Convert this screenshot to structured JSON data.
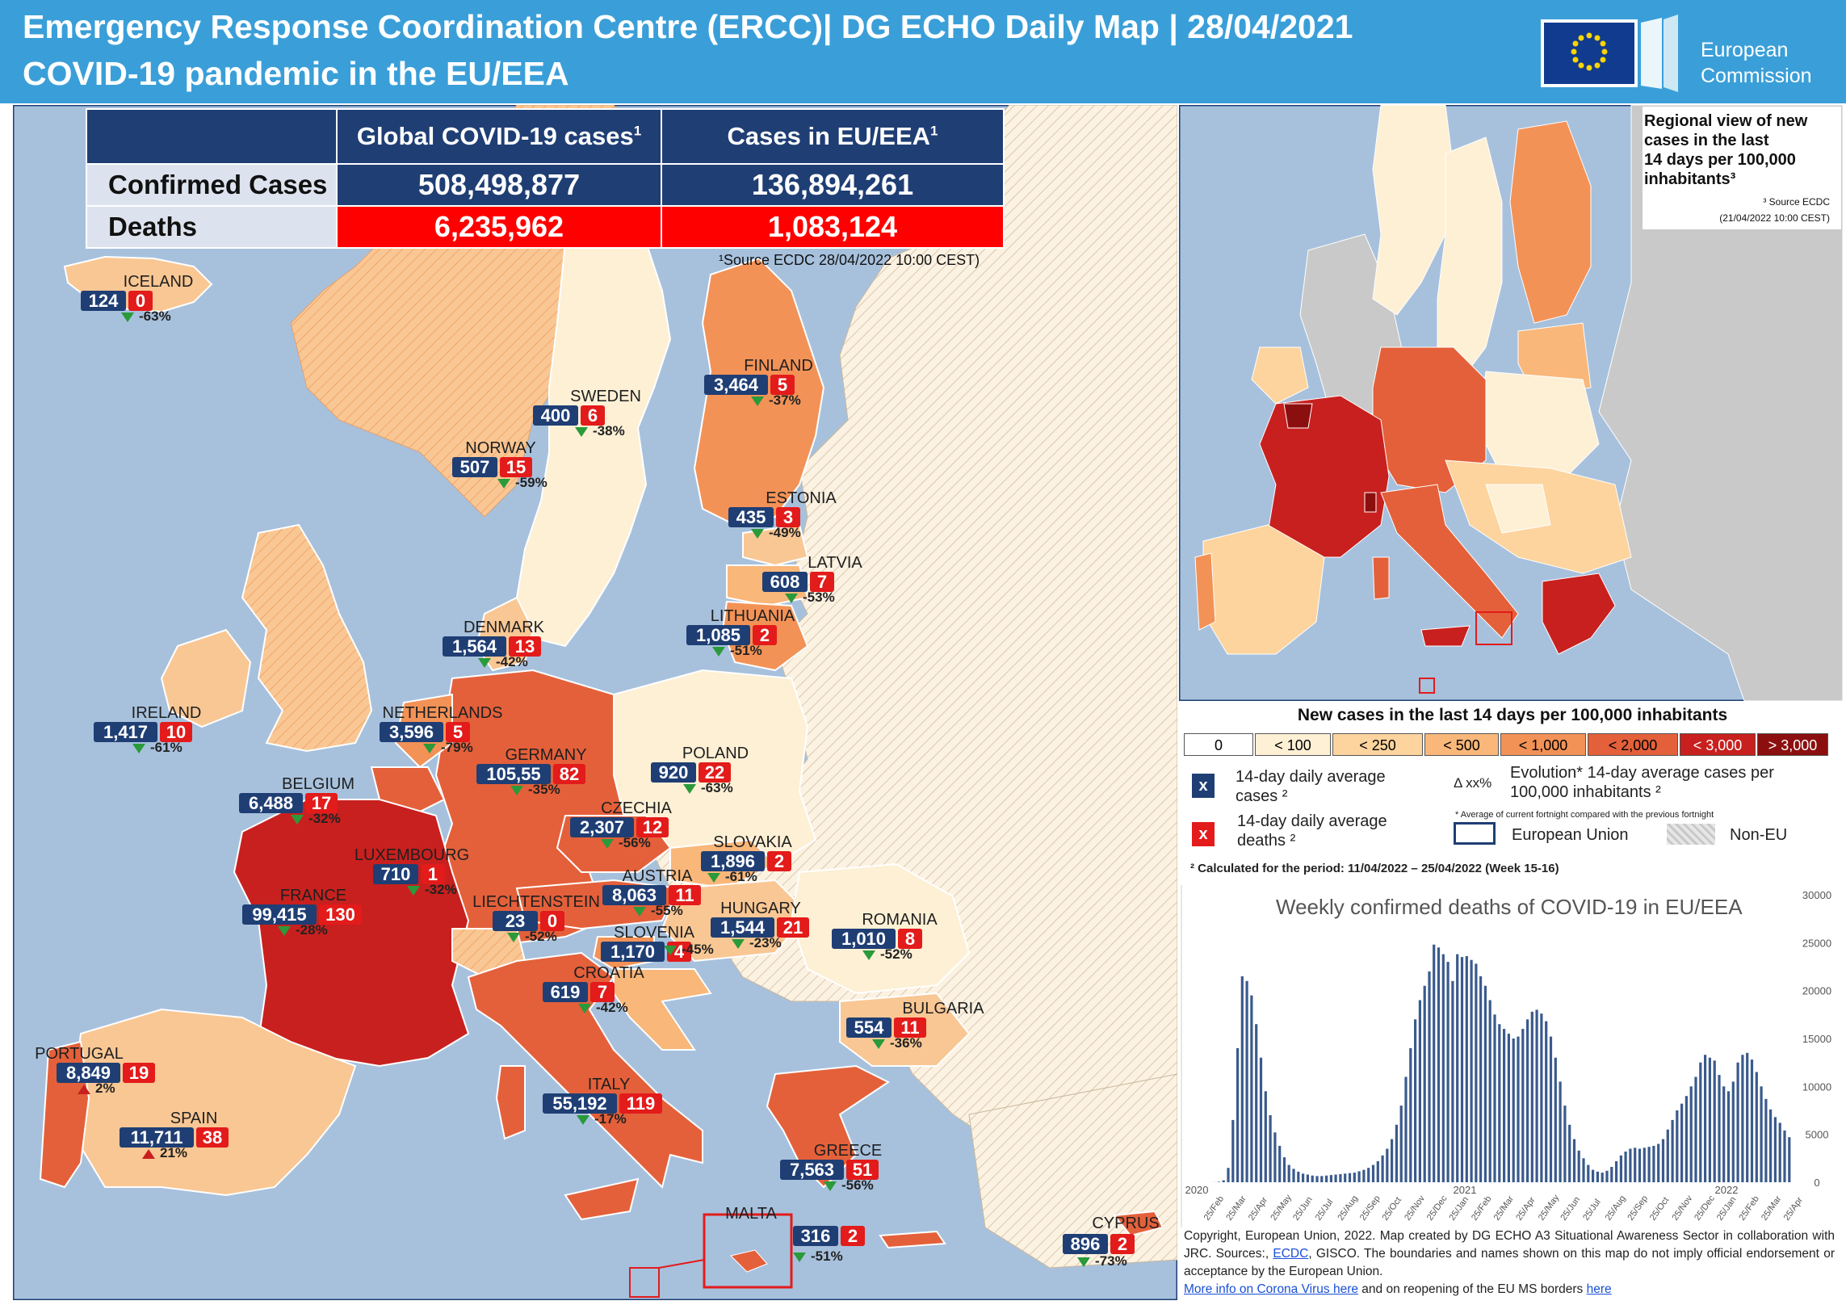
{
  "header": {
    "title_line1": "Emergency Response Coordination Centre (ERCC)| DG ECHO Daily Map | 28/04/2021",
    "title_line2": "COVID-19 pandemic in the EU/EEA",
    "logo_text_1": "European",
    "logo_text_2": "Commission"
  },
  "colors": {
    "header_bg": "#3a9fd8",
    "navy": "#1f3e74",
    "red": "#e31b1b",
    "sea": "#a7c1dd"
  },
  "summary_table": {
    "col_global": "Global COVID-19 cases",
    "col_eu": "Cases in EU/EEA",
    "footnote_mark": "1",
    "row_confirmed": "Confirmed Cases",
    "row_deaths": "Deaths",
    "global_confirmed": "508,498,877",
    "eu_confirmed": "136,894,261",
    "global_deaths": "6,235,962",
    "eu_deaths": "1,083,124",
    "source": "¹Source ECDC  28/04/2022 10:00 CEST)"
  },
  "countries": [
    {
      "name": "ICELAND",
      "cases": "124",
      "deaths": "0",
      "trend": "-63%",
      "dir": "down"
    },
    {
      "name": "SWEDEN",
      "cases": "400",
      "deaths": "6",
      "trend": "-38%",
      "dir": "down"
    },
    {
      "name": "FINLAND",
      "cases": "3,464",
      "deaths": "5",
      "trend": "-37%",
      "dir": "down"
    },
    {
      "name": "NORWAY",
      "cases": "507",
      "deaths": "15",
      "trend": "-59%",
      "dir": "down"
    },
    {
      "name": "ESTONIA",
      "cases": "435",
      "deaths": "3",
      "trend": "-49%",
      "dir": "down"
    },
    {
      "name": "LATVIA",
      "cases": "608",
      "deaths": "7",
      "trend": "-53%",
      "dir": "down"
    },
    {
      "name": "LITHUANIA",
      "cases": "1,085",
      "deaths": "2",
      "trend": "-51%",
      "dir": "down"
    },
    {
      "name": "DENMARK",
      "cases": "1,564",
      "deaths": "13",
      "trend": "-42%",
      "dir": "down"
    },
    {
      "name": "IRELAND",
      "cases": "1,417",
      "deaths": "10",
      "trend": "-61%",
      "dir": "down"
    },
    {
      "name": "NETHERLANDS",
      "cases": "3,596",
      "deaths": "5",
      "trend": "-79%",
      "dir": "down"
    },
    {
      "name": "GERMANY",
      "cases": "105,55",
      "deaths": "82",
      "trend": "-35%",
      "dir": "down"
    },
    {
      "name": "POLAND",
      "cases": "920",
      "deaths": "22",
      "trend": "-63%",
      "dir": "down"
    },
    {
      "name": "BELGIUM",
      "cases": "6,488",
      "deaths": "17",
      "trend": "-32%",
      "dir": "down"
    },
    {
      "name": "CZECHIA",
      "cases": "2,307",
      "deaths": "12",
      "trend": "-56%",
      "dir": "down"
    },
    {
      "name": "SLOVAKIA",
      "cases": "1,896",
      "deaths": "2",
      "trend": "-61%",
      "dir": "down"
    },
    {
      "name": "LUXEMBOURG",
      "cases": "710",
      "deaths": "1",
      "trend": "-32%",
      "dir": "down"
    },
    {
      "name": "AUSTRIA",
      "cases": "8,063",
      "deaths": "11",
      "trend": "-55%",
      "dir": "down"
    },
    {
      "name": "FRANCE",
      "cases": "99,415",
      "deaths": "130",
      "trend": "-28%",
      "dir": "down"
    },
    {
      "name": "LIECHTENSTEIN",
      "cases": "23",
      "deaths": "0",
      "trend": "-52%",
      "dir": "down"
    },
    {
      "name": "HUNGARY",
      "cases": "1,544",
      "deaths": "21",
      "trend": "-23%",
      "dir": "down"
    },
    {
      "name": "ROMANIA",
      "cases": "1,010",
      "deaths": "8",
      "trend": "-52%",
      "dir": "down"
    },
    {
      "name": "SLOVENIA",
      "cases": "1,170",
      "deaths": "4",
      "trend": "-45%",
      "dir": "down"
    },
    {
      "name": "CROATIA",
      "cases": "619",
      "deaths": "7",
      "trend": "-42%",
      "dir": "down"
    },
    {
      "name": "BULGARIA",
      "cases": "554",
      "deaths": "11",
      "trend": "-36%",
      "dir": "down"
    },
    {
      "name": "PORTUGAL",
      "cases": "8,849",
      "deaths": "19",
      "trend": "2%",
      "dir": "up"
    },
    {
      "name": "SPAIN",
      "cases": "11,711",
      "deaths": "38",
      "trend": "21%",
      "dir": "up"
    },
    {
      "name": "ITALY",
      "cases": "55,192",
      "deaths": "119",
      "trend": "-17%",
      "dir": "down"
    },
    {
      "name": "GREECE",
      "cases": "7,563",
      "deaths": "51",
      "trend": "-56%",
      "dir": "down"
    },
    {
      "name": "MALTA",
      "cases": "316",
      "deaths": "2",
      "trend": "-51%",
      "dir": "down"
    },
    {
      "name": "CYPRUS",
      "cases": "896",
      "deaths": "2",
      "trend": "-73%",
      "dir": "down"
    }
  ],
  "regional_box": {
    "title_lines": [
      "Regional view of new",
      "cases in the last",
      "14 days per 100,000",
      "inhabitants³"
    ],
    "source_1": "³ Source ECDC",
    "source_2": "(21/04/2022 10:00 CEST)"
  },
  "legend": {
    "title": "New cases in the last 14 days per 100,000 inhabitants",
    "bins": [
      {
        "label": "0",
        "color": "#ffffff",
        "text": "#000000"
      },
      {
        "label": "< 100",
        "color": "#fdf0d5",
        "text": "#000000"
      },
      {
        "label": "< 250",
        "color": "#fdd49e",
        "text": "#000000"
      },
      {
        "label": "< 500",
        "color": "#f9b77a",
        "text": "#000000"
      },
      {
        "label": "< 1,000",
        "color": "#f39257",
        "text": "#000000"
      },
      {
        "label": "< 2,000",
        "color": "#e4603a",
        "text": "#000000"
      },
      {
        "label": "< 3,000",
        "color": "#c8201e",
        "text": "#ffffff"
      },
      {
        "label": "> 3,000",
        "color": "#8c0f0f",
        "text": "#ffffff"
      }
    ],
    "x_symbol": "x",
    "cases_line1": "14-day daily average",
    "cases_line2": "cases ²",
    "deaths_line1": "14-day daily average",
    "deaths_line2": "deaths ²",
    "evo_symbol": "Δ xx%",
    "evo_line1": "Evolution* 14-day average cases per",
    "evo_line2": "100,000 inhabitants ²",
    "evo_note": "* Average of current fortnight compared with the previous fortnight",
    "eu_label": "European Union",
    "noneu_label": "Non-EU",
    "calc_note": "² Calculated  for the period: 11/04/2022 – 25/04/2022 (Week 15-16)"
  },
  "chart_data": {
    "type": "bar",
    "title": "Weekly confirmed deaths of COVID-19  in EU/EEA",
    "ylim": [
      0,
      30000
    ],
    "y_ticks": [
      "0",
      "5000",
      "10000",
      "15000",
      "20000",
      "25000",
      "30000"
    ],
    "year_labels": [
      "2020",
      "2021",
      "2022"
    ],
    "x_tick_labels": [
      "25/Feb",
      "25/Mar",
      "25/Apr",
      "25/May",
      "25/Jun",
      "25/Jul",
      "25/Aug",
      "25/Sep",
      "25/Oct",
      "25/Nov",
      "25/Dec",
      "25/Jan",
      "25/Feb",
      "25/Mar",
      "25/Apr",
      "25/May",
      "25/Jun",
      "25/Jul",
      "25/Aug",
      "25/Sep",
      "25/Oct",
      "25/Nov",
      "25/Dec",
      "25/Jan",
      "25/Feb",
      "25/Mar",
      "25/Apr"
    ],
    "values": [
      10,
      50,
      200,
      1500,
      6500,
      14000,
      21500,
      21000,
      19500,
      16500,
      13000,
      9500,
      7000,
      5200,
      3800,
      2600,
      1800,
      1400,
      1100,
      900,
      800,
      700,
      650,
      650,
      700,
      750,
      800,
      850,
      900,
      950,
      1000,
      1150,
      1300,
      1500,
      1800,
      2200,
      2800,
      3500,
      4500,
      6000,
      8000,
      11000,
      14000,
      17000,
      19000,
      20500,
      22000,
      24800,
      24500,
      23800,
      23000,
      21000,
      23800,
      23500,
      23600,
      23200,
      22800,
      21500,
      20500,
      19000,
      17500,
      16500,
      16000,
      15500,
      15000,
      15200,
      16000,
      17000,
      17800,
      18000,
      17600,
      16800,
      15200,
      13000,
      10500,
      8000,
      6000,
      4500,
      3300,
      2500,
      1800,
      1300,
      1100,
      1000,
      1200,
      1600,
      2200,
      2800,
      3200,
      3500,
      3600,
      3500,
      3600,
      3700,
      3800,
      4000,
      4500,
      5500,
      6500,
      7500,
      8200,
      9000,
      10000,
      11000,
      12500,
      13300,
      13000,
      12700,
      11200,
      10000,
      9500,
      10500,
      12500,
      13300,
      13500,
      12800,
      11500,
      10000,
      8700,
      7600,
      6800,
      6200,
      5400,
      4700
    ]
  },
  "copyright": {
    "text_a": "Copyright, European Union, 2022. Map created by DG ECHO A3 Situational Awareness Sector in collaboration with JRC. Sources:,",
    "ecdc": "ECDC",
    "text_b": ", GISCO. The boundaries and names shown on this map do not imply official endorsement or acceptance  by the European Union.",
    "more_info": "More info on Corona Virus here",
    "text_c": " and on reopening of the EU MS borders ",
    "here": "here"
  }
}
